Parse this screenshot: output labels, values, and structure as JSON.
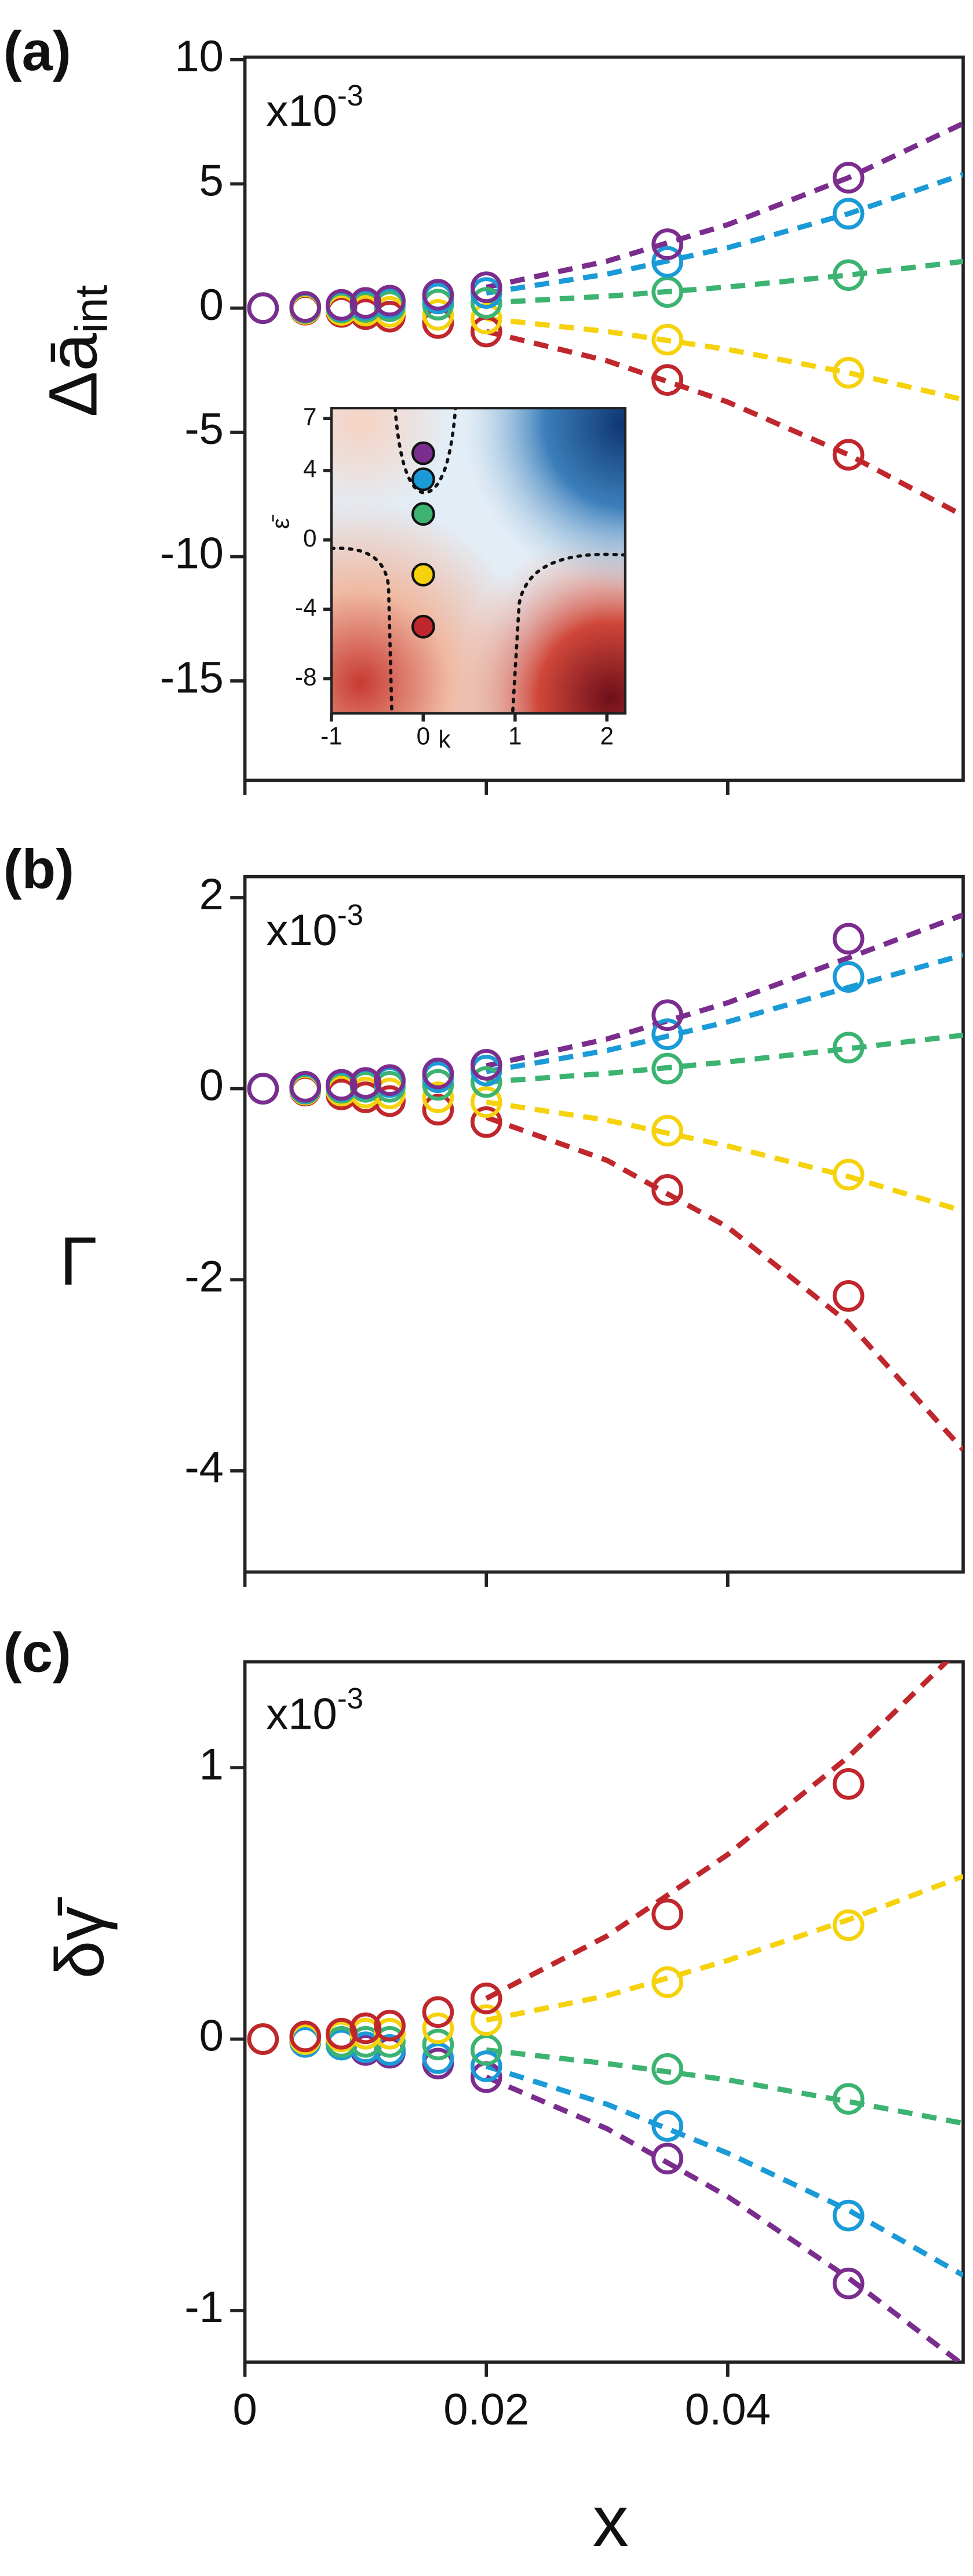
{
  "chart_data": [
    {
      "type": "scatter",
      "panel_label": "(a)",
      "ylabel": "Δā",
      "ylabel_sub": "int",
      "multiplier_base": "x10",
      "multiplier_exponent": "-3",
      "xlim": [
        0,
        0.0595
      ],
      "xticks": [
        0,
        0.02,
        0.04
      ],
      "ylim": [
        -19,
        10.1
      ],
      "yticks": [
        -15,
        -10,
        -5,
        0,
        5,
        10
      ],
      "x": [
        0.0015,
        0.005,
        0.008,
        0.01,
        0.012,
        0.016,
        0.02,
        0.035,
        0.05
      ],
      "fit_x": [
        0.02,
        0.03,
        0.04,
        0.05,
        0.0595
      ],
      "series": [
        {
          "color": "#c0272d",
          "values": [
            0,
            -0.06,
            -0.15,
            -0.24,
            -0.34,
            -0.6,
            -0.94,
            -2.89,
            -5.9
          ],
          "fit": [
            -0.94,
            -2.12,
            -3.78,
            -5.9,
            -8.35
          ]
        },
        {
          "color": "#f5d20c",
          "values": [
            0,
            -0.03,
            -0.07,
            -0.1,
            -0.15,
            -0.27,
            -0.42,
            -1.27,
            -2.6
          ],
          "fit": [
            -0.42,
            -0.94,
            -1.66,
            -2.6,
            -3.68
          ]
        },
        {
          "color": "#3cb371",
          "values": [
            0,
            0.01,
            0.03,
            0.05,
            0.08,
            0.14,
            0.21,
            0.65,
            1.33
          ],
          "fit": [
            0.21,
            0.48,
            0.85,
            1.33,
            1.88
          ]
        },
        {
          "color": "#1a9ad6",
          "values": [
            0,
            0.04,
            0.1,
            0.15,
            0.22,
            0.39,
            0.61,
            1.86,
            3.8
          ],
          "fit": [
            0.61,
            1.37,
            2.43,
            3.8,
            5.38
          ]
        },
        {
          "color": "#7b2d8e",
          "values": [
            0,
            0.05,
            0.13,
            0.21,
            0.3,
            0.54,
            0.84,
            2.57,
            5.25
          ],
          "fit": [
            0.84,
            1.89,
            3.36,
            5.25,
            7.43
          ]
        }
      ]
    },
    {
      "type": "scatter",
      "panel_label": "(b)",
      "ylabel": "Γ",
      "multiplier_base": "x10",
      "multiplier_exponent": "-3",
      "xlim": [
        0,
        0.0595
      ],
      "xticks": [
        0,
        0.02,
        0.04
      ],
      "ylim": [
        -5.06,
        2.22
      ],
      "yticks": [
        -4,
        -2,
        0,
        2
      ],
      "x": [
        0.0015,
        0.005,
        0.008,
        0.01,
        0.012,
        0.016,
        0.02,
        0.035,
        0.05
      ],
      "fit_x": [
        0.02,
        0.03,
        0.04,
        0.05,
        0.0595
      ],
      "series": [
        {
          "color": "#c0272d",
          "values": [
            0,
            -0.02,
            -0.06,
            -0.09,
            -0.13,
            -0.22,
            -0.35,
            -1.06,
            -2.17
          ],
          "fit": [
            -0.3,
            -0.75,
            -1.45,
            -2.45,
            -3.78
          ]
        },
        {
          "color": "#f5d20c",
          "values": [
            0,
            -0.01,
            -0.02,
            -0.04,
            -0.05,
            -0.09,
            -0.14,
            -0.44,
            -0.9
          ],
          "fit": [
            -0.14,
            -0.33,
            -0.6,
            -0.92,
            -1.28
          ]
        },
        {
          "color": "#3cb371",
          "values": [
            0,
            0,
            0.01,
            0.02,
            0.02,
            0.04,
            0.07,
            0.21,
            0.43
          ],
          "fit": [
            0.07,
            0.16,
            0.28,
            0.42,
            0.56
          ]
        },
        {
          "color": "#1a9ad6",
          "values": [
            0,
            0.01,
            0.03,
            0.05,
            0.07,
            0.12,
            0.19,
            0.57,
            1.17
          ],
          "fit": [
            0.18,
            0.4,
            0.7,
            1.06,
            1.4
          ]
        },
        {
          "color": "#7b2d8e",
          "values": [
            0,
            0.02,
            0.04,
            0.06,
            0.09,
            0.16,
            0.25,
            0.77,
            1.57
          ],
          "fit": [
            0.24,
            0.52,
            0.9,
            1.37,
            1.82
          ]
        }
      ]
    },
    {
      "type": "scatter",
      "panel_label": "(c)",
      "ylabel": "δγ̄",
      "xlabel": "x",
      "multiplier_base": "x10",
      "multiplier_exponent": "-3",
      "xlim": [
        0,
        0.0595
      ],
      "xticks": [
        0,
        0.02,
        0.04
      ],
      "ylim": [
        -1.19,
        1.39
      ],
      "yticks": [
        -1,
        0,
        1
      ],
      "x": [
        0.0015,
        0.005,
        0.008,
        0.01,
        0.012,
        0.016,
        0.02,
        0.035,
        0.05
      ],
      "fit_x": [
        0.02,
        0.03,
        0.04,
        0.05,
        0.0595
      ],
      "series": [
        {
          "color": "#7b2d8e",
          "values": [
            0,
            -0.01,
            -0.02,
            -0.04,
            -0.05,
            -0.09,
            -0.14,
            -0.44,
            -0.9
          ],
          "fit": [
            -0.14,
            -0.33,
            -0.58,
            -0.88,
            -1.2
          ]
        },
        {
          "color": "#1a9ad6",
          "values": [
            0,
            -0.01,
            -0.02,
            -0.03,
            -0.04,
            -0.07,
            -0.1,
            -0.32,
            -0.65
          ],
          "fit": [
            -0.1,
            -0.24,
            -0.42,
            -0.63,
            -0.87
          ]
        },
        {
          "color": "#3cb371",
          "values": [
            0,
            0,
            -0.01,
            -0.01,
            -0.01,
            -0.02,
            -0.04,
            -0.11,
            -0.22
          ],
          "fit": [
            -0.04,
            -0.09,
            -0.15,
            -0.23,
            -0.31
          ]
        },
        {
          "color": "#f5d20c",
          "values": [
            0,
            0,
            0.01,
            0.02,
            0.02,
            0.04,
            0.07,
            0.21,
            0.42
          ],
          "fit": [
            0.07,
            0.16,
            0.29,
            0.44,
            0.6
          ]
        },
        {
          "color": "#c0272d",
          "values": [
            0,
            0.01,
            0.02,
            0.04,
            0.05,
            0.1,
            0.15,
            0.46,
            0.94
          ],
          "fit": [
            0.15,
            0.38,
            0.68,
            1.04,
            1.45
          ]
        }
      ]
    },
    {
      "type": "scatter",
      "xlabel": "k",
      "ylabel": "ε̄",
      "filled": true,
      "xlim": [
        -1,
        2.2
      ],
      "xticks": [
        -1,
        0,
        1,
        2
      ],
      "ylim": [
        -10,
        7.6
      ],
      "yticks": [
        -8,
        -4,
        0,
        4,
        7
      ],
      "series": [
        {
          "color": "#c0272d",
          "x": [
            0
          ],
          "values": [
            -5
          ]
        },
        {
          "color": "#f5d20c",
          "x": [
            0
          ],
          "values": [
            -2
          ]
        },
        {
          "color": "#3cb371",
          "x": [
            0
          ],
          "values": [
            1.5
          ]
        },
        {
          "color": "#1a9ad6",
          "x": [
            0
          ],
          "values": [
            3.5
          ]
        },
        {
          "color": "#7b2d8e",
          "x": [
            0
          ],
          "values": [
            5
          ]
        }
      ]
    }
  ]
}
